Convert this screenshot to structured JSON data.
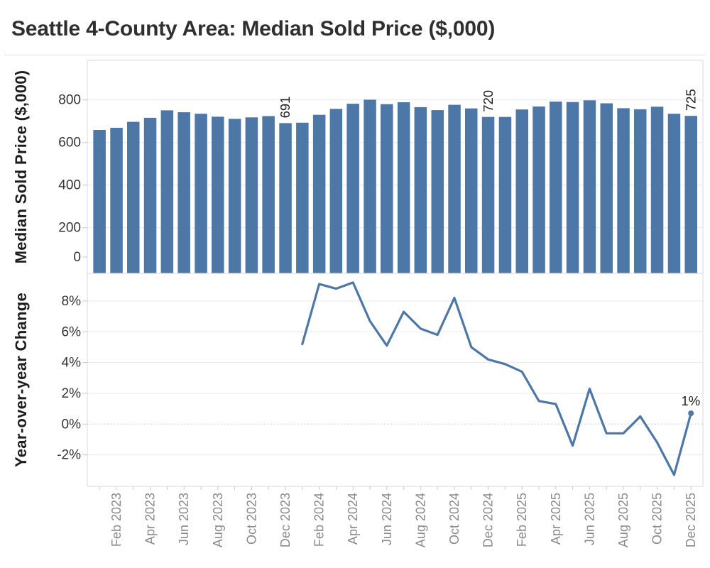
{
  "title": "Seattle 4-County Area: Median Sold Price ($,000)",
  "chart_data": {
    "type": "bar",
    "categories": [
      "Jan 2023",
      "Feb 2023",
      "Mar 2023",
      "Apr 2023",
      "May 2023",
      "Jun 2023",
      "Jul 2023",
      "Aug 2023",
      "Sep 2023",
      "Oct 2023",
      "Nov 2023",
      "Dec 2023",
      "Jan 2024",
      "Feb 2024",
      "Mar 2024",
      "Apr 2024",
      "May 2024",
      "Jun 2024",
      "Jul 2024",
      "Aug 2024",
      "Sep 2024",
      "Oct 2024",
      "Nov 2024",
      "Dec 2024",
      "Jan 2025",
      "Feb 2025",
      "Mar 2025",
      "Apr 2025",
      "May 2025",
      "Jun 2025",
      "Jul 2025",
      "Aug 2025",
      "Sep 2025",
      "Oct 2025",
      "Nov 2025",
      "Dec 2025"
    ],
    "series": [
      {
        "name": "Median Sold Price ($,000)",
        "type": "bar",
        "panel": "top",
        "values": [
          659,
          669,
          697,
          716,
          751,
          742,
          735,
          721,
          711,
          718,
          724,
          691,
          693,
          730,
          758,
          782,
          801,
          780,
          789,
          766,
          752,
          777,
          760,
          720,
          720,
          755,
          769,
          792,
          790,
          798,
          784,
          761,
          756,
          768,
          735,
          725
        ]
      },
      {
        "name": "Year-over-year Change",
        "type": "line",
        "panel": "bottom",
        "values": [
          null,
          null,
          null,
          null,
          null,
          null,
          null,
          null,
          null,
          null,
          null,
          null,
          5.2,
          9.1,
          8.8,
          9.2,
          6.7,
          5.1,
          7.3,
          6.2,
          5.8,
          8.2,
          5.0,
          4.2,
          3.9,
          3.4,
          1.5,
          1.3,
          -1.4,
          2.3,
          -0.6,
          -0.6,
          0.5,
          -1.2,
          -3.3,
          0.7
        ]
      }
    ],
    "top_axis": {
      "label": "Median Sold Price ($,000)",
      "tick_values": [
        800,
        600,
        400,
        200,
        0
      ],
      "tick_labels": [
        "800",
        "600",
        "400",
        "200",
        "0"
      ],
      "range": [
        0,
        860
      ],
      "grid": "on"
    },
    "bottom_axis": {
      "label": "Year-over-year Change",
      "tick_values": [
        8,
        6,
        4,
        2,
        0,
        -2
      ],
      "tick_labels": [
        "8%",
        "6%",
        "4%",
        "2%",
        "0%",
        "-2%"
      ],
      "range": [
        -4,
        9.8
      ],
      "grid": "on",
      "zero_line": "dotted"
    },
    "x_axis": {
      "tick_labels": [
        "Feb 2023",
        "Apr 2023",
        "Jun 2023",
        "Aug 2023",
        "Oct 2023",
        "Dec 2023",
        "Feb 2024",
        "Apr 2024",
        "Jun 2024",
        "Aug 2024",
        "Oct 2024",
        "Dec 2024",
        "Feb 2025",
        "Apr 2025",
        "Jun 2025",
        "Aug 2025",
        "Oct 2025",
        "Dec 2025"
      ],
      "label_start_index": 1,
      "label_every": 2,
      "rotation": -90
    },
    "annotations": [
      {
        "series": "price",
        "target": "Dec 2023",
        "text": "691",
        "rotated": true
      },
      {
        "series": "price",
        "target": "Dec 2024",
        "text": "720",
        "rotated": true
      },
      {
        "series": "price",
        "target": "Dec 2025",
        "text": "725",
        "rotated": true
      },
      {
        "series": "yoy",
        "target": "Dec 2025",
        "text": "1%",
        "rotated": false,
        "marker": true
      }
    ],
    "legend": "none",
    "colors": {
      "bar": "#4d77a6",
      "line": "#4d77a6",
      "marker": "#4d77a6",
      "grid": "#e9e9e9",
      "zero_grid": "#c4c4c4",
      "panel_border": "#d8d8d8",
      "tick": "#c9c9c9",
      "x_tick_label": "#8a8a8a",
      "y_tick_label": "#333333",
      "annotation": "#1d1d1d",
      "title": "#2f2f2f"
    }
  }
}
